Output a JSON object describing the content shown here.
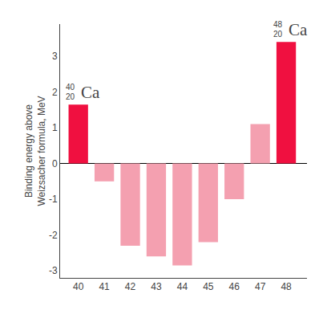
{
  "chart_data": {
    "type": "bar",
    "x": [
      40,
      41,
      42,
      43,
      44,
      45,
      46,
      47,
      48
    ],
    "values": [
      1.65,
      -0.5,
      -2.3,
      -2.6,
      -2.85,
      -2.2,
      -1.0,
      1.1,
      3.4
    ],
    "colors": [
      "#F01040",
      "#F4A0B0",
      "#F4A0B0",
      "#F4A0B0",
      "#F4A0B0",
      "#F4A0B0",
      "#F4A0B0",
      "#F4A0B0",
      "#F01040"
    ],
    "y_label": "Binding energy above\nWeizsacher formula, MeV",
    "xlim": [
      39.3,
      48.8
    ],
    "xticks": [
      40,
      41,
      42,
      43,
      44,
      45,
      46,
      47,
      48
    ],
    "ylim": [
      -3.2,
      3.9
    ],
    "yticks": [
      -3,
      -2,
      -1,
      0,
      1,
      2,
      3
    ],
    "grid": false,
    "annotations": [
      {
        "x": 40,
        "y": 1.65,
        "text": "Ca",
        "superscript": "40",
        "subscript": "20"
      },
      {
        "x": 48,
        "y": 3.4,
        "text": "Ca",
        "superscript": "48",
        "subscript": "20"
      }
    ]
  }
}
